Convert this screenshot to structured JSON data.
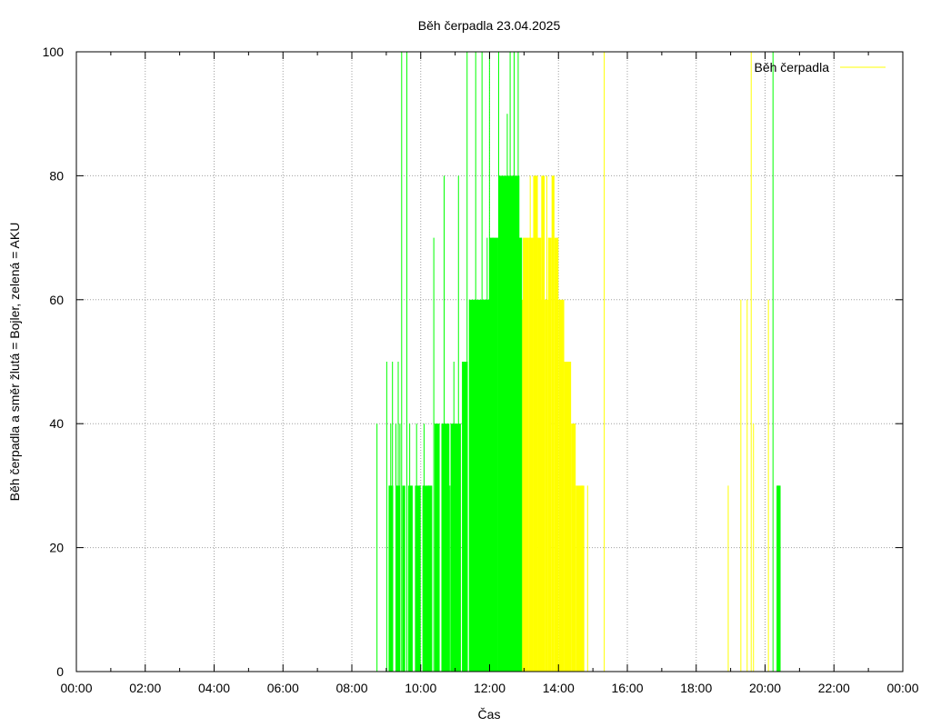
{
  "chart_data": {
    "type": "bar",
    "title": "Běh čerpadla 23.04.2025",
    "xlabel": "Čas",
    "ylabel": "Běh čerpadla a směr žlutá = Bojler, zelená = AKU",
    "xlim": [
      0,
      24
    ],
    "ylim": [
      0,
      100
    ],
    "x_ticks": [
      "00:00",
      "02:00",
      "04:00",
      "06:00",
      "08:00",
      "10:00",
      "12:00",
      "14:00",
      "16:00",
      "18:00",
      "20:00",
      "22:00",
      "00:00"
    ],
    "y_ticks": [
      "0",
      "20",
      "40",
      "60",
      "80",
      "100"
    ],
    "grid": true,
    "legend_position": "top-right",
    "colors": {
      "green": "#00ff00",
      "yellow": "#ffff00",
      "grid": "#a0a0a0",
      "axis": "#000000"
    },
    "legend": [
      {
        "name": "Běh čerpadla",
        "color": "#ffff00"
      }
    ],
    "series": [
      {
        "direction": "AKU",
        "color": "#00ff00",
        "spikes": [
          {
            "x": "08:43",
            "y": 40
          },
          {
            "x": "09:00",
            "y": 50
          },
          {
            "x": "09:04",
            "y": 30
          },
          {
            "x": "09:07",
            "y": 40
          },
          {
            "x": "09:10",
            "y": 50
          },
          {
            "x": "09:16",
            "y": 40
          },
          {
            "x": "09:20",
            "y": 50
          },
          {
            "x": "09:23",
            "y": 40
          },
          {
            "x": "09:26",
            "y": 100
          },
          {
            "x": "09:35",
            "y": 100
          },
          {
            "x": "09:40",
            "y": 40
          },
          {
            "x": "09:52",
            "y": 40
          },
          {
            "x": "09:57",
            "y": 30
          },
          {
            "x": "10:05",
            "y": 40
          },
          {
            "x": "10:13",
            "y": 30
          },
          {
            "x": "10:22",
            "y": 70
          },
          {
            "x": "10:28",
            "y": 30
          },
          {
            "x": "10:40",
            "y": 80
          },
          {
            "x": "10:50",
            "y": 30
          },
          {
            "x": "10:57",
            "y": 50
          },
          {
            "x": "11:05",
            "y": 80
          },
          {
            "x": "11:12",
            "y": 50
          },
          {
            "x": "11:20",
            "y": 100
          },
          {
            "x": "11:30",
            "y": 60
          },
          {
            "x": "11:35",
            "y": 100
          },
          {
            "x": "11:46",
            "y": 100
          },
          {
            "x": "11:55",
            "y": 70
          },
          {
            "x": "11:59",
            "y": 100
          },
          {
            "x": "12:05",
            "y": 70
          },
          {
            "x": "12:15",
            "y": 100
          },
          {
            "x": "12:21",
            "y": 80
          },
          {
            "x": "12:30",
            "y": 90
          },
          {
            "x": "12:35",
            "y": 100
          },
          {
            "x": "12:40",
            "y": 80
          },
          {
            "x": "12:42",
            "y": 100
          },
          {
            "x": "12:49",
            "y": 100
          },
          {
            "x": "12:55",
            "y": 70
          },
          {
            "x": "20:13",
            "y": 100
          },
          {
            "x": "20:22",
            "y": 30
          }
        ],
        "blocks": [
          {
            "from": "09:05",
            "to": "09:12",
            "y": 30
          },
          {
            "from": "09:17",
            "to": "09:24",
            "y": 30
          },
          {
            "from": "09:28",
            "to": "09:33",
            "y": 30
          },
          {
            "from": "09:38",
            "to": "09:46",
            "y": 30
          },
          {
            "from": "09:50",
            "to": "10:00",
            "y": 30
          },
          {
            "from": "10:03",
            "to": "10:20",
            "y": 30
          },
          {
            "from": "10:24",
            "to": "10:33",
            "y": 40
          },
          {
            "from": "10:36",
            "to": "10:50",
            "y": 40
          },
          {
            "from": "10:52",
            "to": "11:10",
            "y": 40
          },
          {
            "from": "11:12",
            "to": "11:22",
            "y": 50
          },
          {
            "from": "11:24",
            "to": "11:55",
            "y": 60
          },
          {
            "from": "11:50",
            "to": "12:00",
            "y": 60
          },
          {
            "from": "12:00",
            "to": "12:15",
            "y": 70
          },
          {
            "from": "12:15",
            "to": "12:42",
            "y": 80
          },
          {
            "from": "12:42",
            "to": "12:52",
            "y": 80
          },
          {
            "from": "12:50",
            "to": "12:56",
            "y": 70
          },
          {
            "from": "20:20",
            "to": "20:27",
            "y": 30
          }
        ]
      },
      {
        "direction": "Bojler",
        "color": "#ffff00",
        "spikes": [
          {
            "x": "12:58",
            "y": 50
          },
          {
            "x": "13:10",
            "y": 80
          },
          {
            "x": "13:20",
            "y": 80
          },
          {
            "x": "13:29",
            "y": 60
          },
          {
            "x": "13:39",
            "y": 80
          },
          {
            "x": "13:42",
            "y": 70
          },
          {
            "x": "13:50",
            "y": 80
          },
          {
            "x": "14:40",
            "y": 30
          },
          {
            "x": "14:50",
            "y": 30
          },
          {
            "x": "15:19",
            "y": 100
          },
          {
            "x": "18:55",
            "y": 30
          },
          {
            "x": "19:17",
            "y": 60
          },
          {
            "x": "19:28",
            "y": 60
          },
          {
            "x": "19:35",
            "y": 100
          },
          {
            "x": "19:39",
            "y": 40
          },
          {
            "x": "20:05",
            "y": 60
          }
        ],
        "blocks": [
          {
            "from": "12:56",
            "to": "13:05",
            "y": 60
          },
          {
            "from": "12:58",
            "to": "13:08",
            "y": 70
          },
          {
            "from": "13:08",
            "to": "13:16",
            "y": 70
          },
          {
            "from": "13:16",
            "to": "13:24",
            "y": 80
          },
          {
            "from": "13:24",
            "to": "13:30",
            "y": 70
          },
          {
            "from": "13:30",
            "to": "13:36",
            "y": 80
          },
          {
            "from": "13:36",
            "to": "13:42",
            "y": 60
          },
          {
            "from": "13:42",
            "to": "13:48",
            "y": 70
          },
          {
            "from": "13:48",
            "to": "13:53",
            "y": 80
          },
          {
            "from": "13:53",
            "to": "14:00",
            "y": 70
          },
          {
            "from": "14:00",
            "to": "14:10",
            "y": 60
          },
          {
            "from": "14:10",
            "to": "14:22",
            "y": 50
          },
          {
            "from": "14:22",
            "to": "14:30",
            "y": 40
          },
          {
            "from": "14:30",
            "to": "14:45",
            "y": 30
          }
        ]
      }
    ]
  }
}
